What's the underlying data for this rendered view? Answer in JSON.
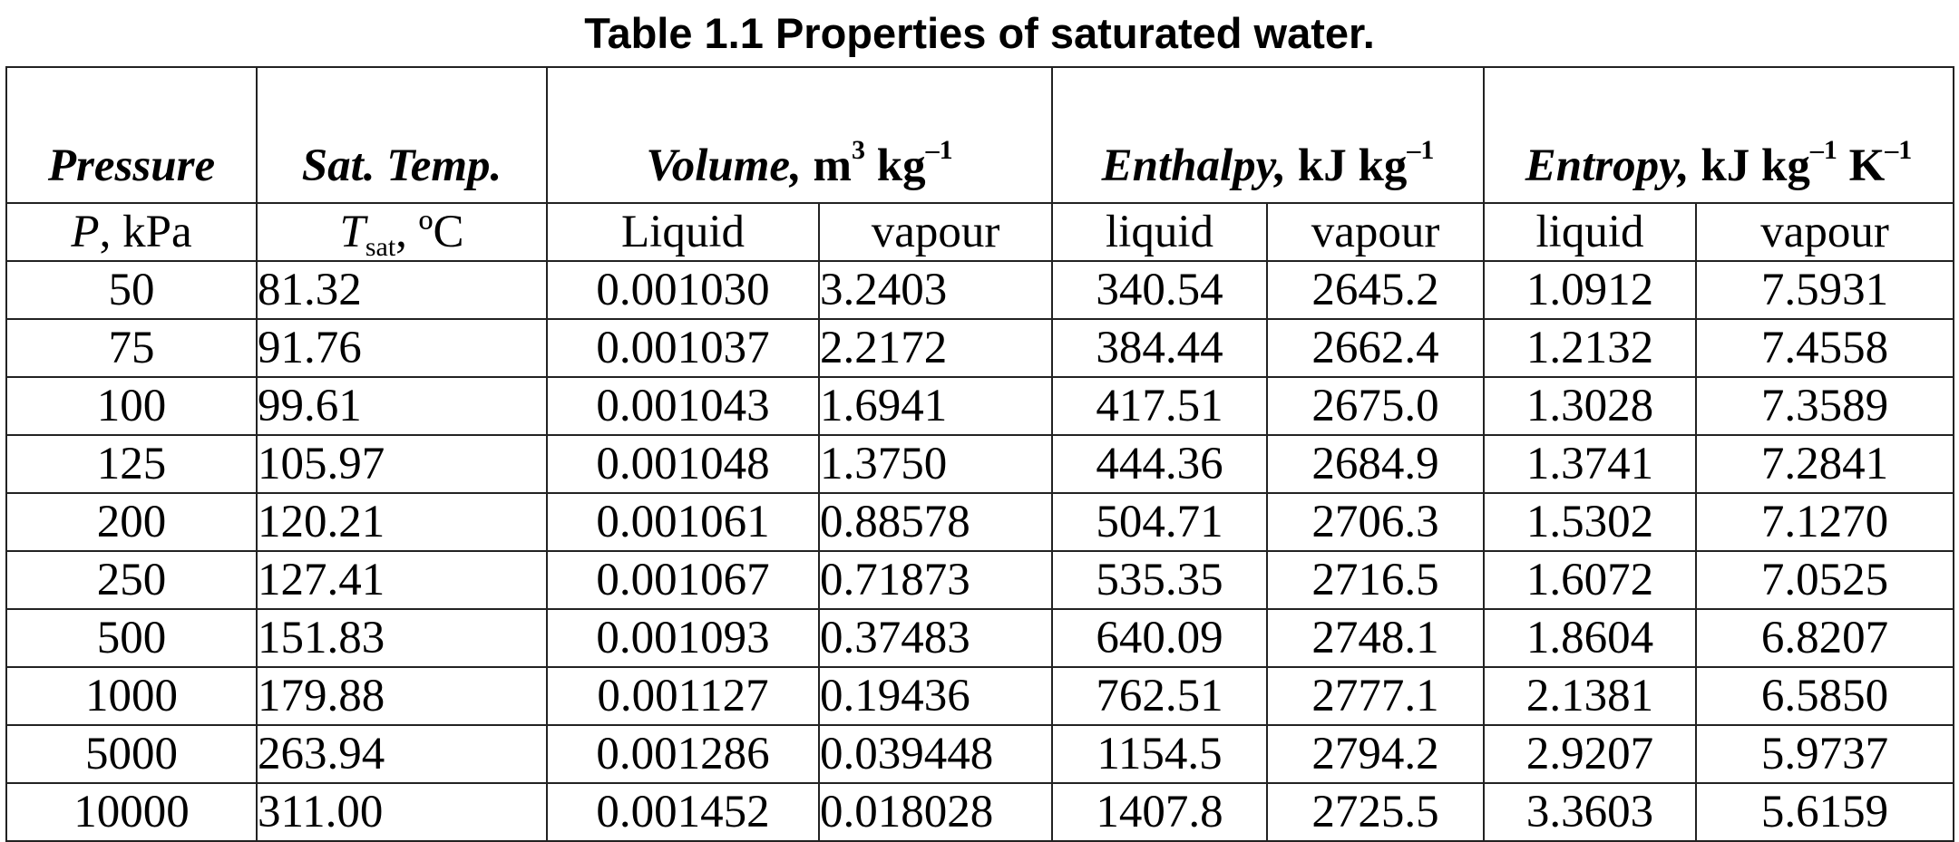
{
  "title": "Table 1.1 Properties of saturated water.",
  "header": {
    "pressure": "Pressure",
    "sat_temp": "Sat. Temp.",
    "volume_name": "Volume,",
    "volume_unit_a": " m",
    "volume_sup_a": "3",
    "volume_unit_b": " kg",
    "volume_sup_b": "–1",
    "enthalpy_name": "Enthalpy,",
    "enthalpy_unit": " kJ kg",
    "enthalpy_sup": "–1",
    "entropy_name": "Entropy,",
    "entropy_unit_a": " kJ kg",
    "entropy_sup_a": "–1",
    "entropy_unit_b": " K",
    "entropy_sup_b": "–1"
  },
  "subheader": {
    "p_symbol": "P",
    "p_unit": ", kPa",
    "t_symbol": "T",
    "t_sub": "sat",
    "t_unit": ", ºC",
    "vol_liquid": "Liquid",
    "vol_vapour": "vapour",
    "ent_liquid": "liquid",
    "ent_vapour": "vapour",
    "s_liquid": "liquid",
    "s_vapour": "vapour"
  },
  "rows": [
    [
      "50",
      "81.32",
      "0.001030",
      "3.2403",
      "340.54",
      "2645.2",
      "1.0912",
      "7.5931"
    ],
    [
      "75",
      "91.76",
      "0.001037",
      "2.2172",
      "384.44",
      "2662.4",
      "1.2132",
      "7.4558"
    ],
    [
      "100",
      "99.61",
      "0.001043",
      "1.6941",
      "417.51",
      "2675.0",
      "1.3028",
      "7.3589"
    ],
    [
      "125",
      "105.97",
      "0.001048",
      "1.3750",
      "444.36",
      "2684.9",
      "1.3741",
      "7.2841"
    ],
    [
      "200",
      "120.21",
      "0.001061",
      "0.88578",
      "504.71",
      "2706.3",
      "1.5302",
      "7.1270"
    ],
    [
      "250",
      "127.41",
      "0.001067",
      "0.71873",
      "535.35",
      "2716.5",
      "1.6072",
      "7.0525"
    ],
    [
      "500",
      "151.83",
      "0.001093",
      "0.37483",
      "640.09",
      "2748.1",
      "1.8604",
      "6.8207"
    ],
    [
      "1000",
      "179.88",
      "0.001127",
      "0.19436",
      "762.51",
      "2777.1",
      "2.1381",
      "6.5850"
    ],
    [
      "5000",
      "263.94",
      "0.001286",
      "0.039448",
      "1154.5",
      "2794.2",
      "2.9207",
      "5.9737"
    ],
    [
      "10000",
      "311.00",
      "0.001452",
      "0.018028",
      "1407.8",
      "2725.5",
      "3.3603",
      "5.6159"
    ]
  ]
}
